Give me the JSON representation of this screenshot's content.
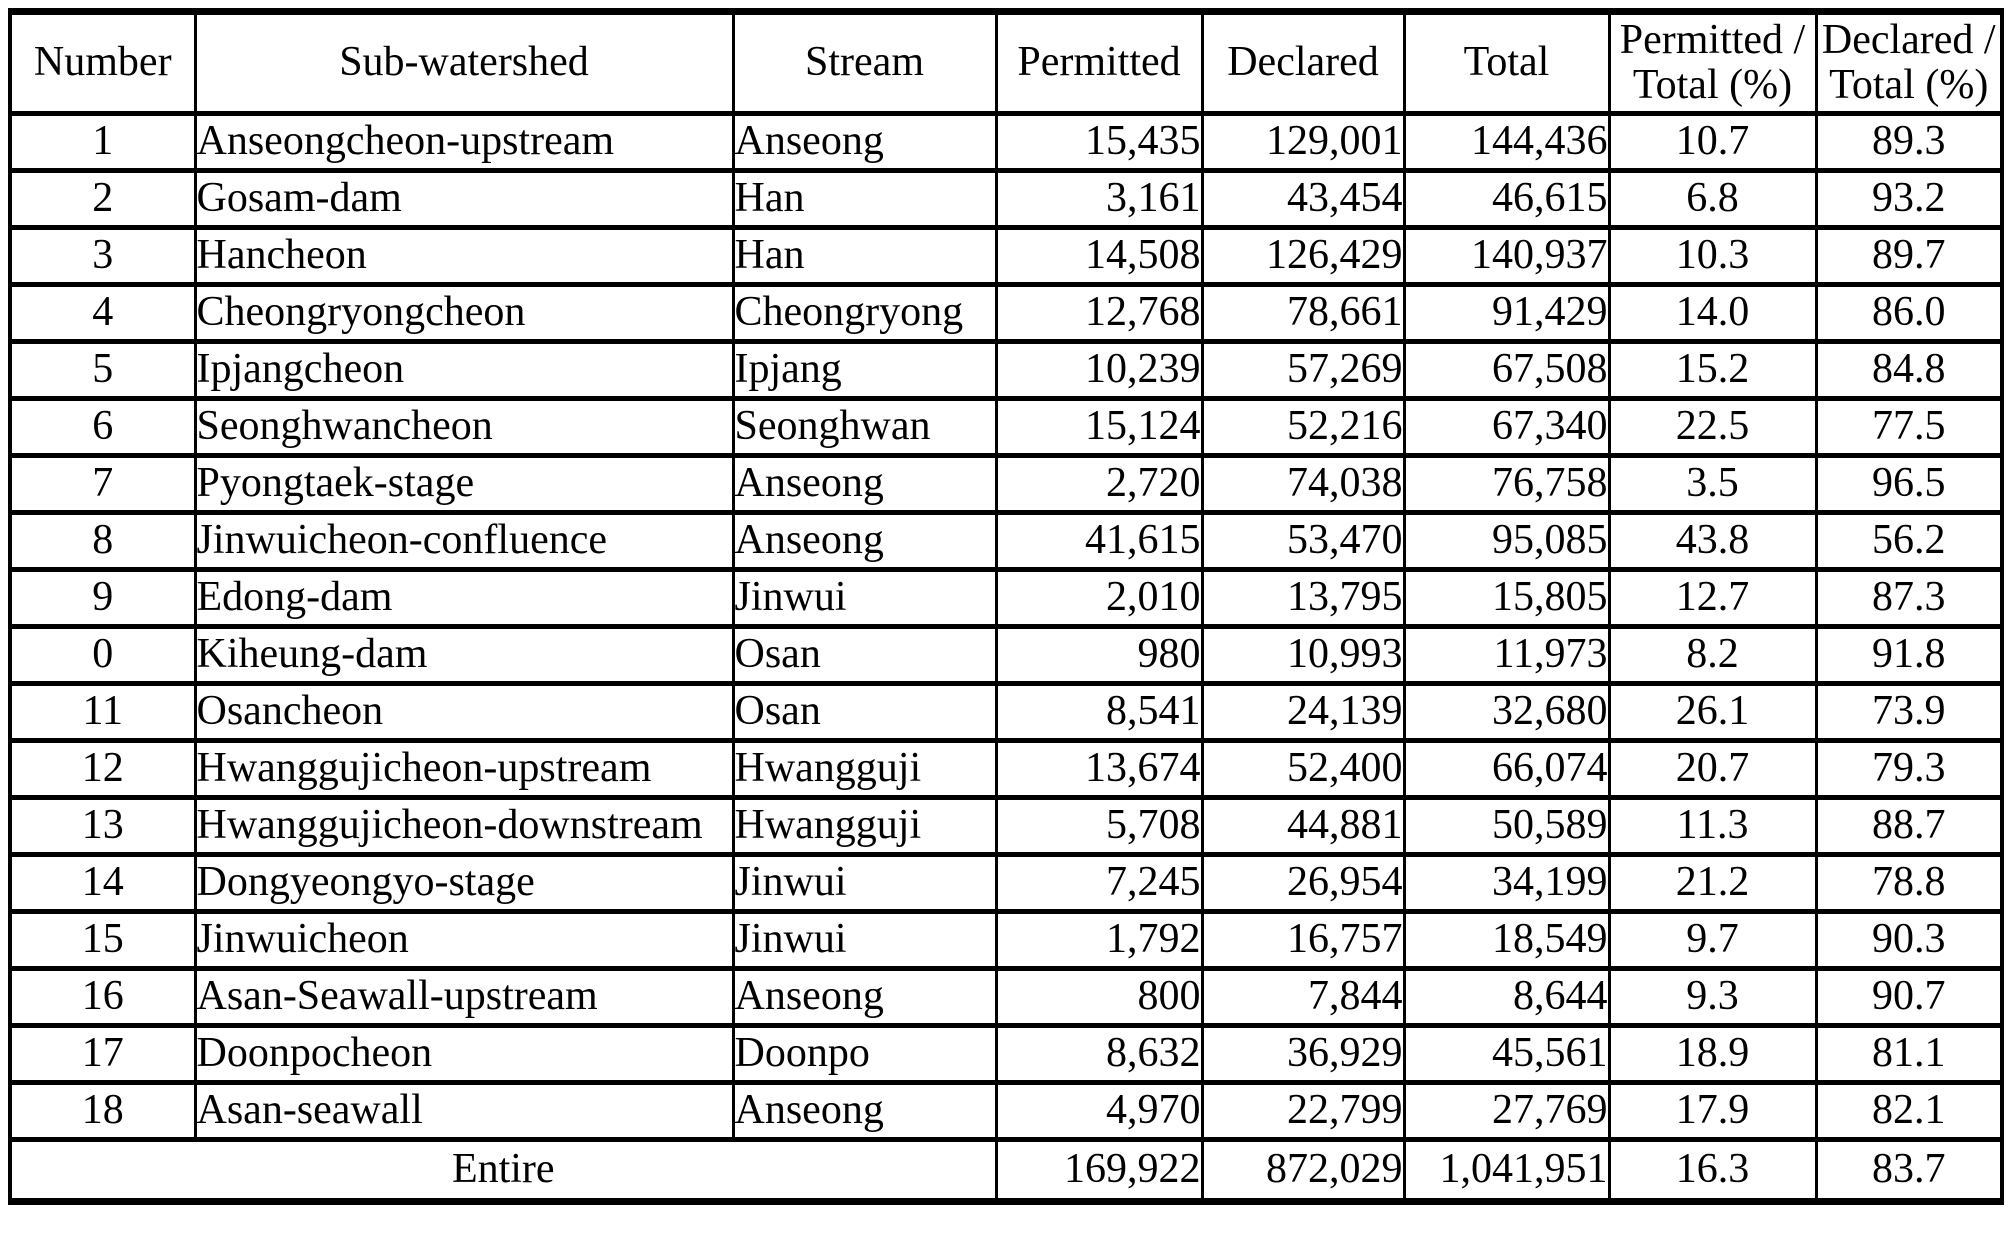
{
  "table": {
    "columns": [
      {
        "key": "number",
        "label": "Number"
      },
      {
        "key": "sub-watershed",
        "label": "Sub-watershed"
      },
      {
        "key": "stream",
        "label": "Stream"
      },
      {
        "key": "permitted",
        "label": "Permitted"
      },
      {
        "key": "declared",
        "label": "Declared"
      },
      {
        "key": "total",
        "label": "Total"
      },
      {
        "key": "permitted-pct",
        "label": "Permitted /\nTotal (%)"
      },
      {
        "key": "declared-pct",
        "label": "Declared /\nTotal (%)"
      }
    ],
    "rows": [
      [
        "1",
        "Anseongcheon-upstream",
        "Anseong",
        "15,435",
        "129,001",
        "144,436",
        "10.7",
        "89.3"
      ],
      [
        "2",
        "Gosam-dam",
        "Han",
        "3,161",
        "43,454",
        "46,615",
        "6.8",
        "93.2"
      ],
      [
        "3",
        "Hancheon",
        "Han",
        "14,508",
        "126,429",
        "140,937",
        "10.3",
        "89.7"
      ],
      [
        "4",
        "Cheongryongcheon",
        "Cheongryong",
        "12,768",
        "78,661",
        "91,429",
        "14.0",
        "86.0"
      ],
      [
        "5",
        "Ipjangcheon",
        "Ipjang",
        "10,239",
        "57,269",
        "67,508",
        "15.2",
        "84.8"
      ],
      [
        "6",
        "Seonghwancheon",
        "Seonghwan",
        "15,124",
        "52,216",
        "67,340",
        "22.5",
        "77.5"
      ],
      [
        "7",
        "Pyongtaek-stage",
        "Anseong",
        "2,720",
        "74,038",
        "76,758",
        "3.5",
        "96.5"
      ],
      [
        "8",
        "Jinwuicheon-confluence",
        "Anseong",
        "41,615",
        "53,470",
        "95,085",
        "43.8",
        "56.2"
      ],
      [
        "9",
        "Edong-dam",
        "Jinwui",
        "2,010",
        "13,795",
        "15,805",
        "12.7",
        "87.3"
      ],
      [
        "0",
        "Kiheung-dam",
        "Osan",
        "980",
        "10,993",
        "11,973",
        "8.2",
        "91.8"
      ],
      [
        "11",
        "Osancheon",
        "Osan",
        "8,541",
        "24,139",
        "32,680",
        "26.1",
        "73.9"
      ],
      [
        "12",
        "Hwanggujicheon-upstream",
        "Hwangguji",
        "13,674",
        "52,400",
        "66,074",
        "20.7",
        "79.3"
      ],
      [
        "13",
        "Hwanggujicheon-downstream",
        "Hwangguji",
        "5,708",
        "44,881",
        "50,589",
        "11.3",
        "88.7"
      ],
      [
        "14",
        "Dongyeongyo-stage",
        "Jinwui",
        "7,245",
        "26,954",
        "34,199",
        "21.2",
        "78.8"
      ],
      [
        "15",
        "Jinwuicheon",
        "Jinwui",
        "1,792",
        "16,757",
        "18,549",
        "9.7",
        "90.3"
      ],
      [
        "16",
        "Asan-Seawall-upstream",
        "Anseong",
        "800",
        "7,844",
        "8,644",
        "9.3",
        "90.7"
      ],
      [
        "17",
        "Doonpocheon",
        "Doonpo",
        "8,632",
        "36,929",
        "45,561",
        "18.9",
        "81.1"
      ],
      [
        "18",
        "Asan-seawall",
        "Anseong",
        "4,970",
        "22,799",
        "27,769",
        "17.9",
        "82.1"
      ]
    ],
    "footer": {
      "label": "Entire",
      "permitted": "169,922",
      "declared": "872,029",
      "total": "1,041,951",
      "permitted_pct": "16.3",
      "declared_pct": "83.7"
    }
  }
}
